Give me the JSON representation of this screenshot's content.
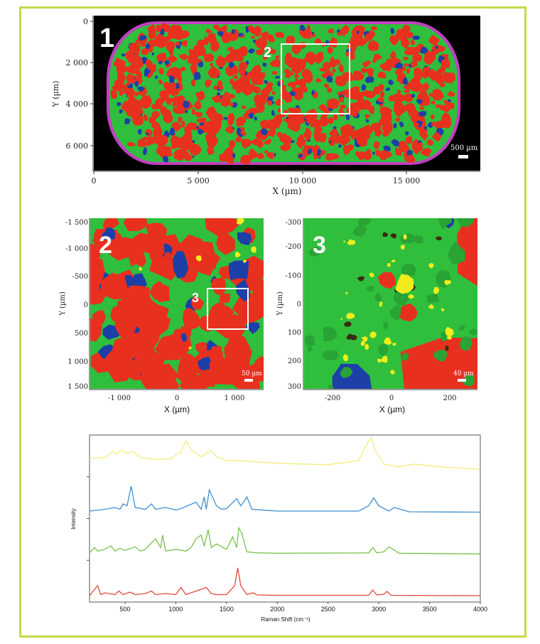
{
  "panel1": {
    "label": "1",
    "xlabel": "X (µm)",
    "ylabel": "Y (µm)",
    "xticks": [
      "0",
      "5 000",
      "10 000",
      "15 000"
    ],
    "yticks": [
      "0",
      "2 000",
      "4 000",
      "6 000"
    ],
    "inset_label": "2",
    "scalebar": "500 µm"
  },
  "panel2": {
    "label": "2",
    "xlabel": "X (µm)",
    "ylabel": "Y (µm)",
    "xticks": [
      "-1 000",
      "0",
      "1 000"
    ],
    "yticks": [
      "-1 500",
      "-1 000",
      "-500",
      "0",
      "500",
      "1 000",
      "1 500"
    ],
    "inset_label": "3",
    "scalebar": "50 µm"
  },
  "panel3": {
    "label": "3",
    "xlabel": "X (µm)",
    "ylabel": "Y (µm)",
    "xticks": [
      "-200",
      "0",
      "200"
    ],
    "yticks": [
      "-300",
      "-200",
      "-100",
      "0",
      "100",
      "200",
      "300"
    ],
    "scalebar": "40 µm"
  },
  "colors": {
    "red": "#e8301e",
    "green": "#2fbf3c",
    "blue": "#1c3fa8",
    "yellow": "#f2ec1c",
    "magenta": "#c040c0",
    "frame": "#c8d84a"
  },
  "chart_data": {
    "type": "line",
    "xlabel": "Raman Shift (cm⁻¹)",
    "ylabel": "Intensity",
    "xlim": [
      150,
      4000
    ],
    "xticks": [
      500,
      1000,
      1500,
      2000,
      2500,
      3000,
      3500,
      4000
    ],
    "series": [
      {
        "color": "#f4ee7a",
        "offset": 3,
        "x": [
          150,
          300,
          380,
          420,
          460,
          520,
          580,
          650,
          800,
          950,
          1050,
          1100,
          1150,
          1250,
          1300,
          1350,
          1400,
          1500,
          1700,
          2000,
          2500,
          2800,
          2900,
          2930,
          2960,
          3050,
          3200,
          3350,
          3500,
          3700,
          4000
        ],
        "y": [
          0.35,
          0.38,
          0.55,
          0.48,
          0.6,
          0.5,
          0.55,
          0.38,
          0.33,
          0.35,
          0.55,
          0.85,
          0.6,
          0.4,
          0.5,
          0.58,
          0.4,
          0.3,
          0.28,
          0.22,
          0.18,
          0.3,
          0.85,
          0.95,
          0.6,
          0.2,
          0.12,
          0.2,
          0.15,
          0.1,
          0.05
        ]
      },
      {
        "color": "#3f8fd0",
        "offset": 2,
        "x": [
          150,
          300,
          400,
          450,
          480,
          520,
          560,
          600,
          700,
          760,
          800,
          900,
          1000,
          1050,
          1200,
          1250,
          1280,
          1300,
          1330,
          1400,
          1450,
          1500,
          1600,
          1640,
          1680,
          1700,
          1750,
          2000,
          2800,
          2900,
          2950,
          3000,
          3100,
          3150,
          3300,
          4000
        ],
        "y": [
          0.05,
          0.1,
          0.15,
          0.1,
          0.25,
          0.2,
          0.75,
          0.15,
          0.1,
          0.25,
          0.1,
          0.15,
          0.08,
          0.12,
          0.3,
          0.1,
          0.45,
          0.1,
          0.65,
          0.2,
          0.1,
          0.12,
          0.4,
          0.2,
          0.35,
          0.45,
          0.1,
          0.05,
          0.05,
          0.2,
          0.42,
          0.2,
          0.05,
          0.15,
          0.03,
          0.02
        ]
      },
      {
        "color": "#7ac24a",
        "offset": 1,
        "x": [
          150,
          200,
          230,
          300,
          360,
          400,
          450,
          500,
          600,
          650,
          700,
          800,
          850,
          870,
          900,
          1000,
          1100,
          1150,
          1200,
          1250,
          1280,
          1320,
          1350,
          1400,
          1500,
          1560,
          1600,
          1620,
          1650,
          1700,
          1800,
          2000,
          2900,
          2940,
          2980,
          3050,
          3100,
          3200,
          4000
        ],
        "y": [
          0.05,
          0.2,
          0.1,
          0.15,
          0.25,
          0.1,
          0.18,
          0.12,
          0.22,
          0.1,
          0.15,
          0.45,
          0.2,
          0.55,
          0.1,
          0.15,
          0.1,
          0.2,
          0.45,
          0.55,
          0.25,
          0.7,
          0.2,
          0.3,
          0.15,
          0.5,
          0.2,
          0.75,
          0.6,
          0.08,
          0.05,
          0.04,
          0.05,
          0.2,
          0.05,
          0.08,
          0.22,
          0.04,
          0.02
        ]
      },
      {
        "color": "#e04a3a",
        "offset": 0,
        "x": [
          150,
          230,
          260,
          300,
          400,
          440,
          480,
          550,
          600,
          700,
          760,
          800,
          900,
          1000,
          1050,
          1100,
          1200,
          1250,
          1300,
          1350,
          1400,
          1500,
          1580,
          1610,
          1640,
          1700,
          1760,
          1800,
          2000,
          2900,
          2940,
          2980,
          3050,
          3080,
          3120,
          4000
        ],
        "y": [
          0.02,
          0.3,
          0.05,
          0.1,
          0.05,
          0.15,
          0.05,
          0.12,
          0.05,
          0.08,
          0.15,
          0.05,
          0.08,
          0.05,
          0.25,
          0.05,
          0.15,
          0.2,
          0.25,
          0.08,
          0.05,
          0.05,
          0.3,
          0.8,
          0.3,
          0.05,
          0.1,
          0.04,
          0.03,
          0.03,
          0.18,
          0.04,
          0.06,
          0.14,
          0.03,
          0.02
        ]
      }
    ]
  }
}
